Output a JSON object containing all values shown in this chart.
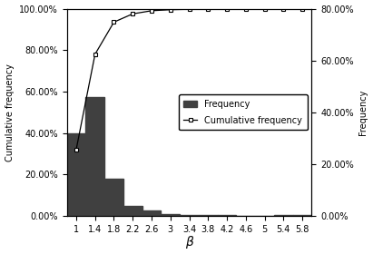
{
  "bar_left_edges": [
    0.8,
    1.2,
    1.6,
    2.0,
    2.4,
    2.8,
    3.2,
    3.6,
    4.0,
    4.4,
    4.8,
    5.2,
    5.6
  ],
  "bar_heights": [
    40.0,
    57.5,
    18.0,
    5.0,
    2.5,
    0.8,
    0.5,
    0.3,
    0.2,
    0.1,
    0.05,
    0.5,
    0.4
  ],
  "bar_width": 0.4,
  "bar_color": "#404040",
  "cum_x": [
    1.0,
    1.4,
    1.8,
    2.2,
    2.6,
    3.0,
    3.4,
    3.8,
    4.2,
    4.6,
    5.0,
    5.4,
    5.8
  ],
  "cum_y": [
    32.0,
    78.0,
    93.5,
    97.5,
    99.0,
    99.5,
    99.7,
    99.8,
    99.85,
    99.9,
    99.92,
    99.95,
    99.97
  ],
  "cum_line_color": "#000000",
  "cum_marker": "s",
  "cum_marker_facecolor": "#ffffff",
  "cum_marker_edgecolor": "#000000",
  "cum_marker_size": 3.5,
  "xlabel": "β",
  "ylabel_left": "Cumulative frequency",
  "ylabel_right": "Frequency",
  "xtick_labels": [
    "1",
    "1.4",
    "1.8",
    "2.2",
    "2.6",
    "3",
    "3.4",
    "3.8",
    "4.2",
    "4.6",
    "5",
    "5.4",
    "5.8"
  ],
  "xtick_positions": [
    1.0,
    1.4,
    1.8,
    2.2,
    2.6,
    3.0,
    3.4,
    3.8,
    4.2,
    4.6,
    5.0,
    5.4,
    5.8
  ],
  "ylim_left": [
    0.0,
    100.0
  ],
  "ylim_right": [
    0.0,
    80.0
  ],
  "yticks_left": [
    0.0,
    20.0,
    40.0,
    60.0,
    80.0,
    100.0
  ],
  "yticks_right": [
    0.0,
    20.0,
    40.0,
    60.0,
    80.0
  ],
  "legend_freq": "Frequency",
  "legend_cum": "Cumulative frequency",
  "background_color": "#ffffff",
  "fontsize": 7,
  "xlim": [
    0.8,
    6.0
  ]
}
